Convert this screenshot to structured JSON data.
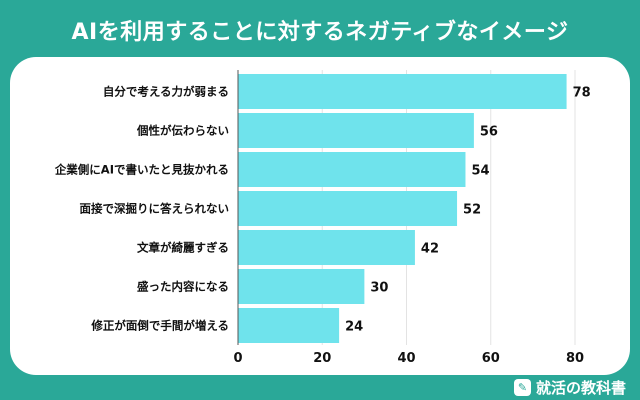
{
  "title": "AIを利用することに対するネガティブなイメージ",
  "brand": {
    "name": "就活の教科書",
    "icon": "pencil-book-icon"
  },
  "colors": {
    "background": "#2aa898",
    "bar": "#6fe3ec",
    "card": "#ffffff"
  },
  "chart_data": {
    "type": "bar",
    "orientation": "horizontal",
    "categories": [
      "自分で考える力が弱まる",
      "個性が伝わらない",
      "企業側にAIで書いたと見抜かれる",
      "面接で深掘りに答えられない",
      "文章が綺麗すぎる",
      "盛った内容になる",
      "修正が面倒で手間が増える"
    ],
    "values": [
      78,
      56,
      54,
      52,
      42,
      30,
      24
    ],
    "xlim": [
      0,
      80
    ],
    "xticks": [
      "0",
      "20",
      "40",
      "60",
      "80"
    ],
    "grid": true,
    "title": "",
    "xlabel": "",
    "ylabel": ""
  }
}
